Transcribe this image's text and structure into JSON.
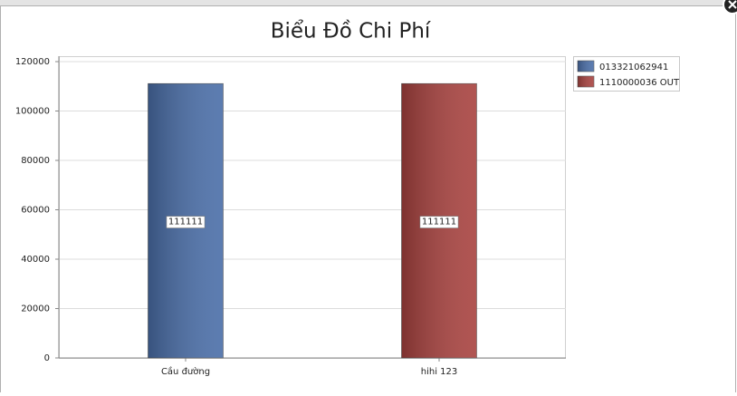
{
  "chart_data": {
    "type": "bar",
    "title": "Biểu Đồ Chi Phí",
    "categories": [
      "Cầu đường",
      "hihi 123"
    ],
    "series": [
      {
        "name": "013321062941",
        "color": "#4a6ea8",
        "values": [
          111111,
          null
        ]
      },
      {
        "name": "1110000036 OUT",
        "color": "#a8423f",
        "values": [
          null,
          111111
        ]
      }
    ],
    "ylim": [
      0,
      120000
    ],
    "yticks": [
      0,
      20000,
      40000,
      60000,
      80000,
      100000,
      120000
    ],
    "grid": true,
    "legend": "right"
  }
}
